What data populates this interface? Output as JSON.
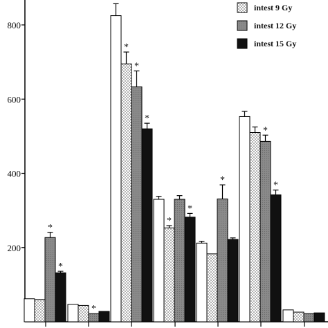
{
  "chart_data": {
    "type": "bar",
    "title": "",
    "xlabel": "",
    "ylabel": "",
    "ylim": [
      0,
      870
    ],
    "yticks": [
      200,
      400,
      600,
      800
    ],
    "grid": false,
    "legend_position": "top-right",
    "group_count": 8,
    "series": [
      {
        "key": "control",
        "in_legend": false,
        "pattern": "white",
        "values": [
          62,
          47,
          825,
          330,
          212,
          553,
          32,
          0
        ],
        "errors": [
          0,
          0,
          32,
          8,
          5,
          14,
          0,
          0
        ],
        "significant": [
          false,
          false,
          false,
          false,
          false,
          false,
          false,
          false
        ]
      },
      {
        "key": "9gy",
        "name": "intest 9 Gy",
        "in_legend": true,
        "pattern": "dots",
        "values": [
          60,
          44,
          695,
          253,
          183,
          510,
          26,
          0
        ],
        "errors": [
          0,
          0,
          32,
          6,
          0,
          15,
          0,
          0
        ],
        "significant": [
          false,
          false,
          true,
          true,
          false,
          false,
          false,
          false
        ]
      },
      {
        "key": "12gy",
        "name": "intest 12 Gy",
        "in_legend": true,
        "pattern": "gray",
        "values": [
          227,
          22,
          633,
          330,
          331,
          486,
          22,
          0
        ],
        "errors": [
          14,
          0,
          43,
          10,
          38,
          17,
          0,
          0
        ],
        "significant": [
          true,
          true,
          true,
          false,
          true,
          true,
          false,
          false
        ]
      },
      {
        "key": "15gy",
        "name": "intest 15 Gy",
        "in_legend": true,
        "pattern": "black",
        "values": [
          132,
          28,
          520,
          282,
          222,
          342,
          24,
          0
        ],
        "errors": [
          4,
          0,
          15,
          10,
          4,
          13,
          0,
          0
        ],
        "significant": [
          true,
          false,
          true,
          true,
          false,
          true,
          false,
          false
        ]
      }
    ],
    "colors": {
      "control": "#ffffff",
      "gray": "#8a8a8a",
      "black": "#111111",
      "dots_fill": "#ffffff",
      "dots_dot": "#555555",
      "axis": "#000000"
    }
  }
}
